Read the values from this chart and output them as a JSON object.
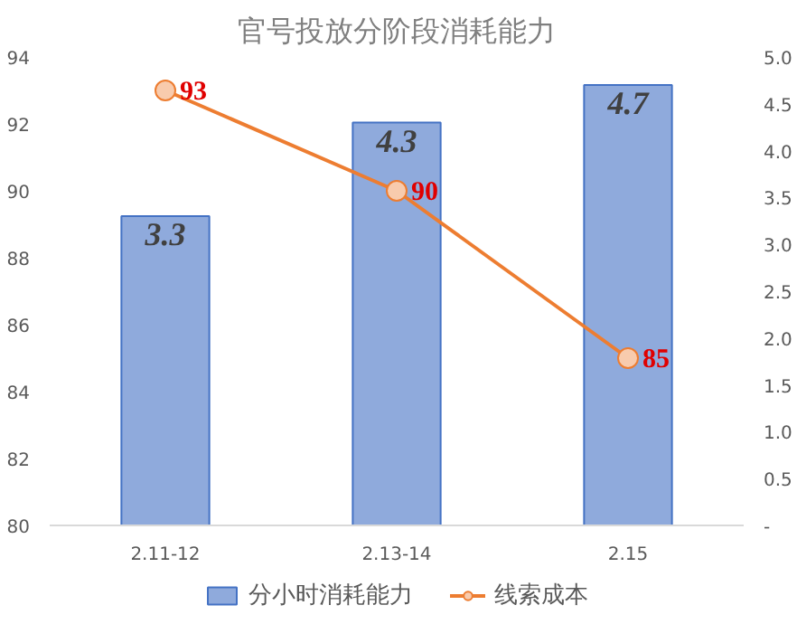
{
  "chart_data": {
    "type": "bar",
    "title": "官号投放分阶段消耗能力",
    "categories": [
      "2.11-12",
      "2.13-14",
      "2.15"
    ],
    "series": [
      {
        "name": "分小时消耗能力",
        "axis": "y2",
        "color": "#8faadc",
        "values": [
          3.3,
          4.3,
          4.7
        ]
      },
      {
        "name": "线索成本",
        "type": "line",
        "color": "#ed7d31",
        "marker": "circle",
        "values": [
          93,
          90,
          85
        ]
      }
    ],
    "ylim": [
      80,
      94
    ],
    "yticks": [
      80,
      82,
      84,
      86,
      88,
      90,
      92,
      94
    ],
    "y2lim": [
      0,
      5
    ],
    "y2ticks": [
      {
        "value": 0,
        "label": "-"
      },
      0.5,
      {
        "value": 1,
        "label": "1.0"
      },
      1.5,
      {
        "value": 2,
        "label": "2.0"
      },
      2.5,
      {
        "value": 3,
        "label": "3.0"
      },
      3.5,
      {
        "value": 4,
        "label": "4.0"
      },
      4.5,
      {
        "value": 5,
        "label": "5.0"
      }
    ],
    "data_labels": true,
    "grid": false,
    "legend": "bottom"
  }
}
